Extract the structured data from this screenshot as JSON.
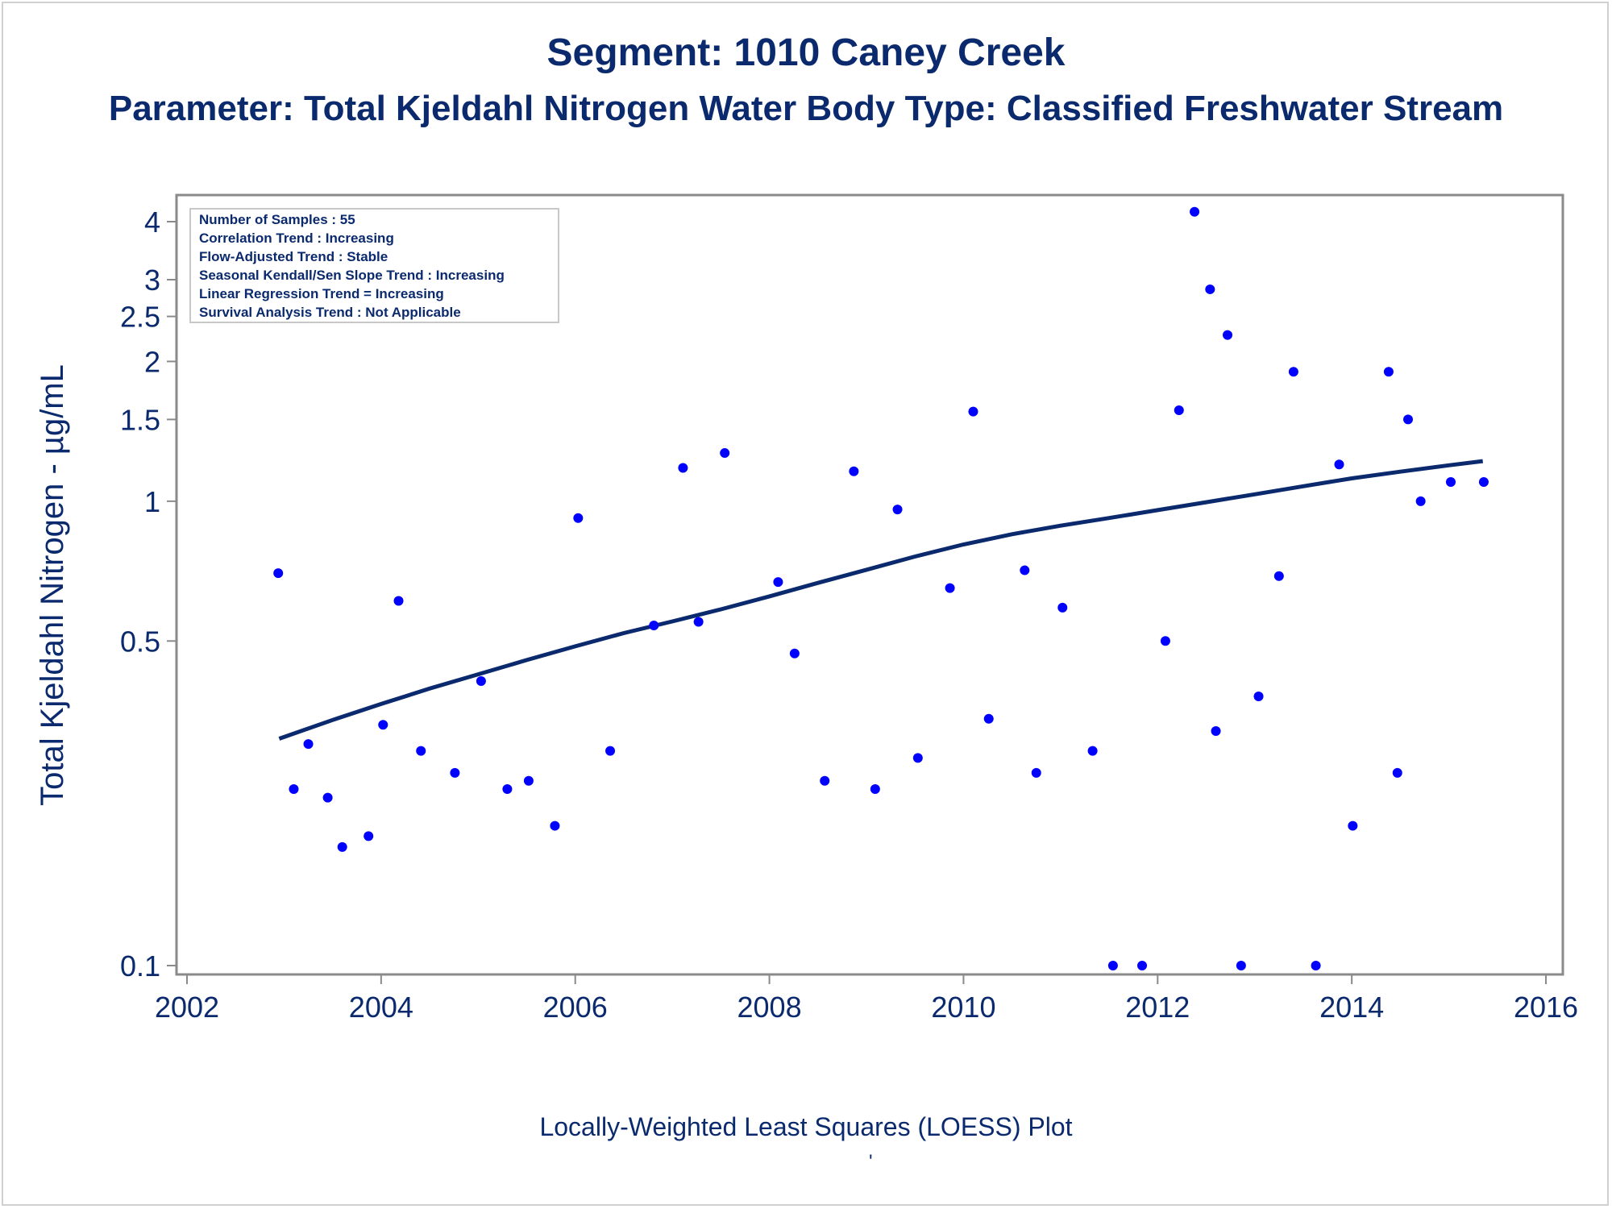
{
  "page": {
    "title": "Segment: 1010  Caney Creek",
    "subtitle": "Parameter: Total Kjeldahl Nitrogen   Water Body Type: Classified Freshwater Stream",
    "footer_label": "Locally-Weighted Least Squares (LOESS) Plot",
    "footer_mark": "'"
  },
  "info_box": {
    "lines": [
      "Number of Samples : 55",
      "Correlation Trend : Increasing",
      "Flow-Adjusted Trend : Stable",
      "Seasonal Kendall/Sen Slope Trend : Increasing",
      "Linear Regression Trend = Increasing",
      "Survival Analysis Trend : Not Applicable"
    ]
  },
  "colors": {
    "text": "#0b2a6e",
    "points": "#0000ff",
    "line": "#0b2a6e",
    "axis": "#8a8a8a",
    "info_border": "#c8c8c8"
  },
  "chart_data": {
    "type": "scatter",
    "title": "Segment: 1010  Caney Creek",
    "subtitle": "Parameter: Total Kjeldahl Nitrogen   Water Body Type: Classified Freshwater Stream",
    "xlabel": "",
    "ylabel": "Total Kjeldahl Nitrogen -  µg/mL",
    "y_scale": "log",
    "xlim": [
      2002,
      2016
    ],
    "ylim": [
      0.095,
      4.5
    ],
    "xticks": [
      2002,
      2004,
      2006,
      2008,
      2010,
      2012,
      2014,
      2016
    ],
    "xtick_labels": [
      "2002",
      "2004",
      "2006",
      "2008",
      "2010",
      "2012",
      "2014",
      "2016"
    ],
    "yticks": [
      0.1,
      0.5,
      1,
      1.5,
      2,
      2.5,
      3,
      4
    ],
    "ytick_labels": [
      "0.1",
      "0.5",
      "1",
      "1.5",
      "2",
      "2.5",
      "3",
      "4"
    ],
    "grid": false,
    "points": [
      {
        "x": 2002.94,
        "y": 0.7
      },
      {
        "x": 2003.1,
        "y": 0.24
      },
      {
        "x": 2003.25,
        "y": 0.3
      },
      {
        "x": 2003.45,
        "y": 0.23
      },
      {
        "x": 2003.6,
        "y": 0.18
      },
      {
        "x": 2003.87,
        "y": 0.19
      },
      {
        "x": 2004.02,
        "y": 0.33
      },
      {
        "x": 2004.18,
        "y": 0.61
      },
      {
        "x": 2004.41,
        "y": 0.29
      },
      {
        "x": 2004.76,
        "y": 0.26
      },
      {
        "x": 2005.03,
        "y": 0.41
      },
      {
        "x": 2005.3,
        "y": 0.24
      },
      {
        "x": 2005.52,
        "y": 0.25
      },
      {
        "x": 2005.79,
        "y": 0.2
      },
      {
        "x": 2006.03,
        "y": 0.92
      },
      {
        "x": 2006.36,
        "y": 0.29
      },
      {
        "x": 2006.81,
        "y": 0.54
      },
      {
        "x": 2007.11,
        "y": 1.18
      },
      {
        "x": 2007.27,
        "y": 0.55
      },
      {
        "x": 2007.54,
        "y": 1.27
      },
      {
        "x": 2008.09,
        "y": 0.67
      },
      {
        "x": 2008.26,
        "y": 0.47
      },
      {
        "x": 2008.57,
        "y": 0.25
      },
      {
        "x": 2008.87,
        "y": 1.16
      },
      {
        "x": 2009.09,
        "y": 0.24
      },
      {
        "x": 2009.32,
        "y": 0.96
      },
      {
        "x": 2009.53,
        "y": 0.28
      },
      {
        "x": 2009.86,
        "y": 0.65
      },
      {
        "x": 2010.1,
        "y": 1.56
      },
      {
        "x": 2010.26,
        "y": 0.34
      },
      {
        "x": 2010.63,
        "y": 0.71
      },
      {
        "x": 2010.75,
        "y": 0.26
      },
      {
        "x": 2011.02,
        "y": 0.59
      },
      {
        "x": 2011.33,
        "y": 0.29
      },
      {
        "x": 2011.54,
        "y": 0.1
      },
      {
        "x": 2011.84,
        "y": 0.1
      },
      {
        "x": 2012.08,
        "y": 0.5
      },
      {
        "x": 2012.22,
        "y": 1.57
      },
      {
        "x": 2012.38,
        "y": 4.2
      },
      {
        "x": 2012.54,
        "y": 2.86
      },
      {
        "x": 2012.6,
        "y": 0.32
      },
      {
        "x": 2012.72,
        "y": 2.28
      },
      {
        "x": 2012.86,
        "y": 0.1
      },
      {
        "x": 2013.04,
        "y": 0.38
      },
      {
        "x": 2013.25,
        "y": 0.69
      },
      {
        "x": 2013.4,
        "y": 1.9
      },
      {
        "x": 2013.63,
        "y": 0.1
      },
      {
        "x": 2013.87,
        "y": 1.2
      },
      {
        "x": 2014.01,
        "y": 0.2
      },
      {
        "x": 2014.38,
        "y": 1.9
      },
      {
        "x": 2014.47,
        "y": 0.26
      },
      {
        "x": 2014.58,
        "y": 1.5
      },
      {
        "x": 2014.71,
        "y": 1.0
      },
      {
        "x": 2015.02,
        "y": 1.1
      },
      {
        "x": 2015.36,
        "y": 1.1
      }
    ],
    "loess_line": [
      {
        "x": 2002.95,
        "y": 0.308
      },
      {
        "x": 2003.5,
        "y": 0.338
      },
      {
        "x": 2004.0,
        "y": 0.366
      },
      {
        "x": 2004.5,
        "y": 0.395
      },
      {
        "x": 2005.0,
        "y": 0.424
      },
      {
        "x": 2005.5,
        "y": 0.455
      },
      {
        "x": 2006.0,
        "y": 0.487
      },
      {
        "x": 2006.5,
        "y": 0.52
      },
      {
        "x": 2007.0,
        "y": 0.551
      },
      {
        "x": 2007.5,
        "y": 0.585
      },
      {
        "x": 2008.0,
        "y": 0.624
      },
      {
        "x": 2008.5,
        "y": 0.667
      },
      {
        "x": 2009.0,
        "y": 0.712
      },
      {
        "x": 2009.5,
        "y": 0.76
      },
      {
        "x": 2010.0,
        "y": 0.807
      },
      {
        "x": 2010.5,
        "y": 0.849
      },
      {
        "x": 2011.0,
        "y": 0.886
      },
      {
        "x": 2011.5,
        "y": 0.92
      },
      {
        "x": 2012.0,
        "y": 0.957
      },
      {
        "x": 2012.5,
        "y": 0.995
      },
      {
        "x": 2013.0,
        "y": 1.035
      },
      {
        "x": 2013.5,
        "y": 1.077
      },
      {
        "x": 2014.0,
        "y": 1.12
      },
      {
        "x": 2014.5,
        "y": 1.158
      },
      {
        "x": 2015.0,
        "y": 1.195
      },
      {
        "x": 2015.35,
        "y": 1.22
      }
    ]
  }
}
